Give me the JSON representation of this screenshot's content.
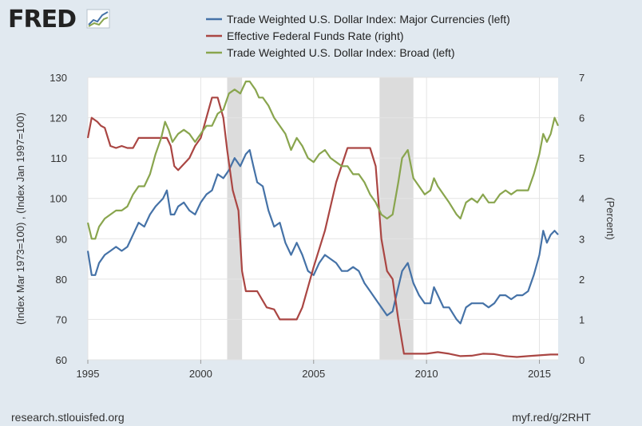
{
  "brand": {
    "logo_text": "FRED",
    "source": "research.stlouisfed.org",
    "short_url": "myf.red/g/2RHT"
  },
  "colors": {
    "background": "#e1e9f0",
    "plot_background": "#ffffff",
    "recession": "#dcdcdc",
    "major": "#4572a7",
    "fedfunds": "#aa4643",
    "broad": "#89a54e"
  },
  "chart_data": {
    "type": "line",
    "title": "",
    "x_range": [
      1995,
      2015.83
    ],
    "x_ticks": [
      1995,
      2000,
      2005,
      2010,
      2015
    ],
    "x_tick_labels": [
      "1995",
      "2000",
      "2005",
      "2010",
      "2015"
    ],
    "y_left": {
      "label": "(Index Mar 1973=100) , (Index Jan 1997=100)",
      "range": [
        60,
        130
      ],
      "ticks": [
        60,
        70,
        80,
        90,
        100,
        110,
        120,
        130
      ],
      "tick_labels": [
        "60",
        "70",
        "80",
        "90",
        "100",
        "110",
        "120",
        "130"
      ]
    },
    "y_right": {
      "label": "(Percent)",
      "range": [
        0,
        7
      ],
      "ticks": [
        0,
        1,
        2,
        3,
        4,
        5,
        6,
        7
      ],
      "tick_labels": [
        "0",
        "1",
        "2",
        "3",
        "4",
        "5",
        "6",
        "7"
      ]
    },
    "grid": true,
    "legend_position": "top",
    "recessions": [
      [
        2001.17,
        2001.83
      ],
      [
        2007.92,
        2009.42
      ]
    ],
    "series": [
      {
        "name": "Trade Weighted U.S. Dollar Index: Major Currencies (left)",
        "axis": "left",
        "color": "#4572a7",
        "points": [
          [
            1995.0,
            87
          ],
          [
            1995.17,
            81
          ],
          [
            1995.33,
            81
          ],
          [
            1995.5,
            84
          ],
          [
            1995.75,
            86
          ],
          [
            1996.0,
            87
          ],
          [
            1996.25,
            88
          ],
          [
            1996.5,
            87
          ],
          [
            1996.75,
            88
          ],
          [
            1997.0,
            91
          ],
          [
            1997.25,
            94
          ],
          [
            1997.5,
            93
          ],
          [
            1997.75,
            96
          ],
          [
            1998.0,
            98
          ],
          [
            1998.33,
            100
          ],
          [
            1998.5,
            102
          ],
          [
            1998.67,
            96
          ],
          [
            1998.83,
            96
          ],
          [
            1999.0,
            98
          ],
          [
            1999.25,
            99
          ],
          [
            1999.5,
            97
          ],
          [
            1999.75,
            96
          ],
          [
            2000.0,
            99
          ],
          [
            2000.25,
            101
          ],
          [
            2000.5,
            102
          ],
          [
            2000.75,
            106
          ],
          [
            2001.0,
            105
          ],
          [
            2001.25,
            107
          ],
          [
            2001.5,
            110
          ],
          [
            2001.75,
            108
          ],
          [
            2002.0,
            111
          ],
          [
            2002.17,
            112
          ],
          [
            2002.33,
            108
          ],
          [
            2002.5,
            104
          ],
          [
            2002.75,
            103
          ],
          [
            2003.0,
            97
          ],
          [
            2003.25,
            93
          ],
          [
            2003.5,
            94
          ],
          [
            2003.75,
            89
          ],
          [
            2004.0,
            86
          ],
          [
            2004.25,
            89
          ],
          [
            2004.5,
            86
          ],
          [
            2004.75,
            82
          ],
          [
            2005.0,
            81
          ],
          [
            2005.25,
            84
          ],
          [
            2005.5,
            86
          ],
          [
            2005.75,
            85
          ],
          [
            2006.0,
            84
          ],
          [
            2006.25,
            82
          ],
          [
            2006.5,
            82
          ],
          [
            2006.75,
            83
          ],
          [
            2007.0,
            82
          ],
          [
            2007.25,
            79
          ],
          [
            2007.5,
            77
          ],
          [
            2007.75,
            75
          ],
          [
            2008.0,
            73
          ],
          [
            2008.25,
            71
          ],
          [
            2008.5,
            72
          ],
          [
            2008.75,
            78
          ],
          [
            2008.92,
            82
          ],
          [
            2009.17,
            84
          ],
          [
            2009.42,
            79
          ],
          [
            2009.67,
            76
          ],
          [
            2009.92,
            74
          ],
          [
            2010.17,
            74
          ],
          [
            2010.33,
            78
          ],
          [
            2010.5,
            76
          ],
          [
            2010.75,
            73
          ],
          [
            2011.0,
            73
          ],
          [
            2011.33,
            70
          ],
          [
            2011.5,
            69
          ],
          [
            2011.75,
            73
          ],
          [
            2012.0,
            74
          ],
          [
            2012.25,
            74
          ],
          [
            2012.5,
            74
          ],
          [
            2012.75,
            73
          ],
          [
            2013.0,
            74
          ],
          [
            2013.25,
            76
          ],
          [
            2013.5,
            76
          ],
          [
            2013.75,
            75
          ],
          [
            2014.0,
            76
          ],
          [
            2014.25,
            76
          ],
          [
            2014.5,
            77
          ],
          [
            2014.75,
            81
          ],
          [
            2015.0,
            86
          ],
          [
            2015.17,
            92
          ],
          [
            2015.33,
            89
          ],
          [
            2015.5,
            91
          ],
          [
            2015.67,
            92
          ],
          [
            2015.83,
            91
          ]
        ]
      },
      {
        "name": "Effective Federal Funds Rate (right)",
        "axis": "right",
        "color": "#aa4643",
        "points": [
          [
            1995.0,
            5.5
          ],
          [
            1995.17,
            6.0
          ],
          [
            1995.42,
            5.9
          ],
          [
            1995.58,
            5.8
          ],
          [
            1995.75,
            5.75
          ],
          [
            1996.0,
            5.3
          ],
          [
            1996.25,
            5.25
          ],
          [
            1996.5,
            5.3
          ],
          [
            1996.75,
            5.25
          ],
          [
            1997.0,
            5.25
          ],
          [
            1997.25,
            5.5
          ],
          [
            1997.5,
            5.5
          ],
          [
            1997.75,
            5.5
          ],
          [
            1998.0,
            5.5
          ],
          [
            1998.5,
            5.5
          ],
          [
            1998.67,
            5.3
          ],
          [
            1998.83,
            4.8
          ],
          [
            1999.0,
            4.7
          ],
          [
            1999.5,
            5.0
          ],
          [
            1999.75,
            5.3
          ],
          [
            2000.0,
            5.5
          ],
          [
            2000.25,
            6.0
          ],
          [
            2000.5,
            6.5
          ],
          [
            2000.75,
            6.5
          ],
          [
            2001.0,
            6.0
          ],
          [
            2001.17,
            5.2
          ],
          [
            2001.42,
            4.2
          ],
          [
            2001.67,
            3.7
          ],
          [
            2001.83,
            2.2
          ],
          [
            2002.0,
            1.7
          ],
          [
            2002.5,
            1.7
          ],
          [
            2002.92,
            1.3
          ],
          [
            2003.25,
            1.25
          ],
          [
            2003.5,
            1.0
          ],
          [
            2003.75,
            1.0
          ],
          [
            2004.25,
            1.0
          ],
          [
            2004.5,
            1.3
          ],
          [
            2004.75,
            1.8
          ],
          [
            2005.0,
            2.3
          ],
          [
            2005.5,
            3.2
          ],
          [
            2006.0,
            4.4
          ],
          [
            2006.5,
            5.25
          ],
          [
            2007.0,
            5.25
          ],
          [
            2007.5,
            5.25
          ],
          [
            2007.75,
            4.8
          ],
          [
            2008.0,
            3.0
          ],
          [
            2008.25,
            2.2
          ],
          [
            2008.5,
            2.0
          ],
          [
            2008.75,
            1.0
          ],
          [
            2009.0,
            0.15
          ],
          [
            2009.5,
            0.15
          ],
          [
            2010.0,
            0.15
          ],
          [
            2010.5,
            0.19
          ],
          [
            2011.0,
            0.15
          ],
          [
            2011.5,
            0.09
          ],
          [
            2012.0,
            0.1
          ],
          [
            2012.5,
            0.15
          ],
          [
            2013.0,
            0.14
          ],
          [
            2013.5,
            0.09
          ],
          [
            2014.0,
            0.07
          ],
          [
            2014.5,
            0.09
          ],
          [
            2015.0,
            0.11
          ],
          [
            2015.5,
            0.13
          ],
          [
            2015.83,
            0.13
          ]
        ]
      },
      {
        "name": "Trade Weighted U.S. Dollar Index: Broad (left)",
        "axis": "left",
        "color": "#89a54e",
        "points": [
          [
            1995.0,
            94
          ],
          [
            1995.17,
            90
          ],
          [
            1995.33,
            90
          ],
          [
            1995.5,
            93
          ],
          [
            1995.75,
            95
          ],
          [
            1996.0,
            96
          ],
          [
            1996.25,
            97
          ],
          [
            1996.5,
            97
          ],
          [
            1996.75,
            98
          ],
          [
            1997.0,
            101
          ],
          [
            1997.25,
            103
          ],
          [
            1997.5,
            103
          ],
          [
            1997.75,
            106
          ],
          [
            1998.0,
            111
          ],
          [
            1998.25,
            115
          ],
          [
            1998.42,
            119
          ],
          [
            1998.58,
            117
          ],
          [
            1998.75,
            114
          ],
          [
            1999.0,
            116
          ],
          [
            1999.25,
            117
          ],
          [
            1999.5,
            116
          ],
          [
            1999.75,
            114
          ],
          [
            2000.0,
            116
          ],
          [
            2000.25,
            118
          ],
          [
            2000.5,
            118
          ],
          [
            2000.75,
            121
          ],
          [
            2001.0,
            122
          ],
          [
            2001.25,
            126
          ],
          [
            2001.5,
            127
          ],
          [
            2001.75,
            126
          ],
          [
            2002.0,
            129
          ],
          [
            2002.17,
            129
          ],
          [
            2002.42,
            127
          ],
          [
            2002.58,
            125
          ],
          [
            2002.75,
            125
          ],
          [
            2003.0,
            123
          ],
          [
            2003.25,
            120
          ],
          [
            2003.5,
            118
          ],
          [
            2003.75,
            116
          ],
          [
            2004.0,
            112
          ],
          [
            2004.25,
            115
          ],
          [
            2004.5,
            113
          ],
          [
            2004.75,
            110
          ],
          [
            2005.0,
            109
          ],
          [
            2005.25,
            111
          ],
          [
            2005.5,
            112
          ],
          [
            2005.75,
            110
          ],
          [
            2006.0,
            109
          ],
          [
            2006.25,
            108
          ],
          [
            2006.5,
            108
          ],
          [
            2006.75,
            106
          ],
          [
            2007.0,
            106
          ],
          [
            2007.25,
            104
          ],
          [
            2007.5,
            101
          ],
          [
            2007.75,
            99
          ],
          [
            2008.0,
            96
          ],
          [
            2008.25,
            95
          ],
          [
            2008.5,
            96
          ],
          [
            2008.75,
            104
          ],
          [
            2008.92,
            110
          ],
          [
            2009.17,
            112
          ],
          [
            2009.42,
            105
          ],
          [
            2009.67,
            103
          ],
          [
            2009.92,
            101
          ],
          [
            2010.17,
            102
          ],
          [
            2010.33,
            105
          ],
          [
            2010.5,
            103
          ],
          [
            2010.75,
            101
          ],
          [
            2011.0,
            99
          ],
          [
            2011.33,
            96
          ],
          [
            2011.5,
            95
          ],
          [
            2011.75,
            99
          ],
          [
            2012.0,
            100
          ],
          [
            2012.25,
            99
          ],
          [
            2012.5,
            101
          ],
          [
            2012.75,
            99
          ],
          [
            2013.0,
            99
          ],
          [
            2013.25,
            101
          ],
          [
            2013.5,
            102
          ],
          [
            2013.75,
            101
          ],
          [
            2014.0,
            102
          ],
          [
            2014.25,
            102
          ],
          [
            2014.5,
            102
          ],
          [
            2014.75,
            106
          ],
          [
            2015.0,
            111
          ],
          [
            2015.17,
            116
          ],
          [
            2015.33,
            114
          ],
          [
            2015.5,
            116
          ],
          [
            2015.67,
            120
          ],
          [
            2015.83,
            118
          ]
        ]
      }
    ]
  }
}
